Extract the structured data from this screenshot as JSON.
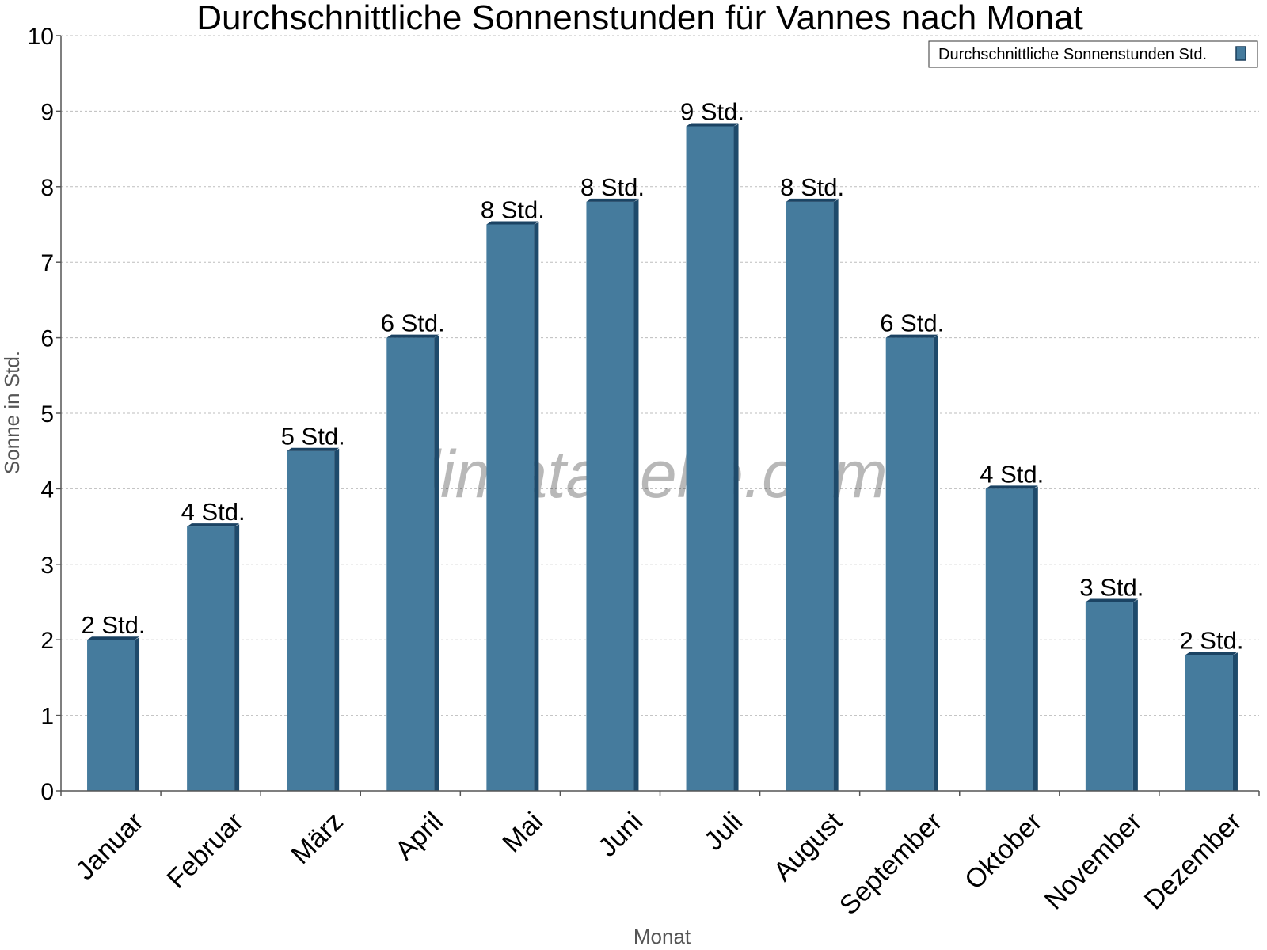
{
  "chart_data": {
    "type": "bar",
    "title": "Durchschnittliche Sonnenstunden für Vannes nach Monat",
    "xlabel": "Monat",
    "ylabel": "Sonne in Std.",
    "ylim": [
      0,
      10
    ],
    "yticks": [
      0,
      1,
      2,
      3,
      4,
      5,
      6,
      7,
      8,
      9,
      10
    ],
    "grid": true,
    "legend_position": "top-right",
    "watermark": "klimatabelle.com",
    "categories": [
      "Januar",
      "Februar",
      "März",
      "April",
      "Mai",
      "Juni",
      "Juli",
      "August",
      "September",
      "Oktober",
      "November",
      "Dezember"
    ],
    "series": [
      {
        "name": "Durchschnittliche Sonnenstunden Std.",
        "color": "#457b9d",
        "values": [
          2.0,
          3.5,
          4.5,
          6.0,
          7.5,
          7.8,
          8.8,
          7.8,
          6.0,
          4.0,
          2.5,
          1.8
        ],
        "labels": [
          "2 Std.",
          "4 Std.",
          "5 Std.",
          "6 Std.",
          "8 Std.",
          "8 Std.",
          "9 Std.",
          "8 Std.",
          "6 Std.",
          "4 Std.",
          "3 Std.",
          "2 Std."
        ]
      }
    ]
  }
}
